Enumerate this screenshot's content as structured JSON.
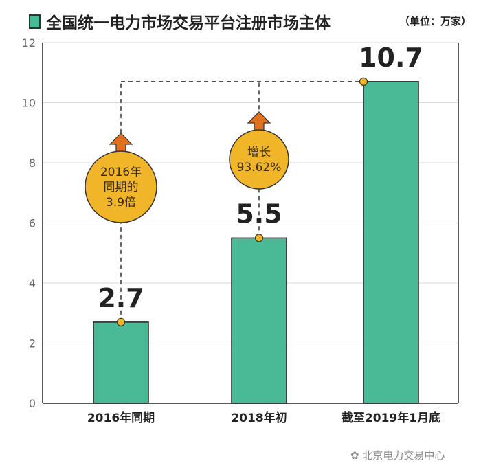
{
  "chart_data": {
    "type": "bar",
    "title": "全国统一电力市场交易平台注册市场主体",
    "unit_label": "（单位：万家）",
    "categories": [
      "2016年同期",
      "2018年初",
      "截至2019年1月底"
    ],
    "values": [
      2.7,
      5.5,
      10.7
    ],
    "data_labels": [
      "2.7",
      "5.5",
      "10.7"
    ],
    "ylim": [
      0,
      12
    ],
    "yticks": [
      0,
      2,
      4,
      6,
      8,
      10,
      12
    ],
    "grid": true,
    "annotations": [
      {
        "lines": [
          "2016年",
          "同期的",
          "3.9倍"
        ]
      },
      {
        "lines": [
          "增长",
          "93.62%"
        ]
      }
    ],
    "colors": {
      "bar": "#4aba96",
      "bar_border": "#222222",
      "bubble": "#f0b528",
      "arrow": "#e0701e",
      "dot": "#f0b528"
    }
  },
  "watermark": "北京电力交易中心"
}
